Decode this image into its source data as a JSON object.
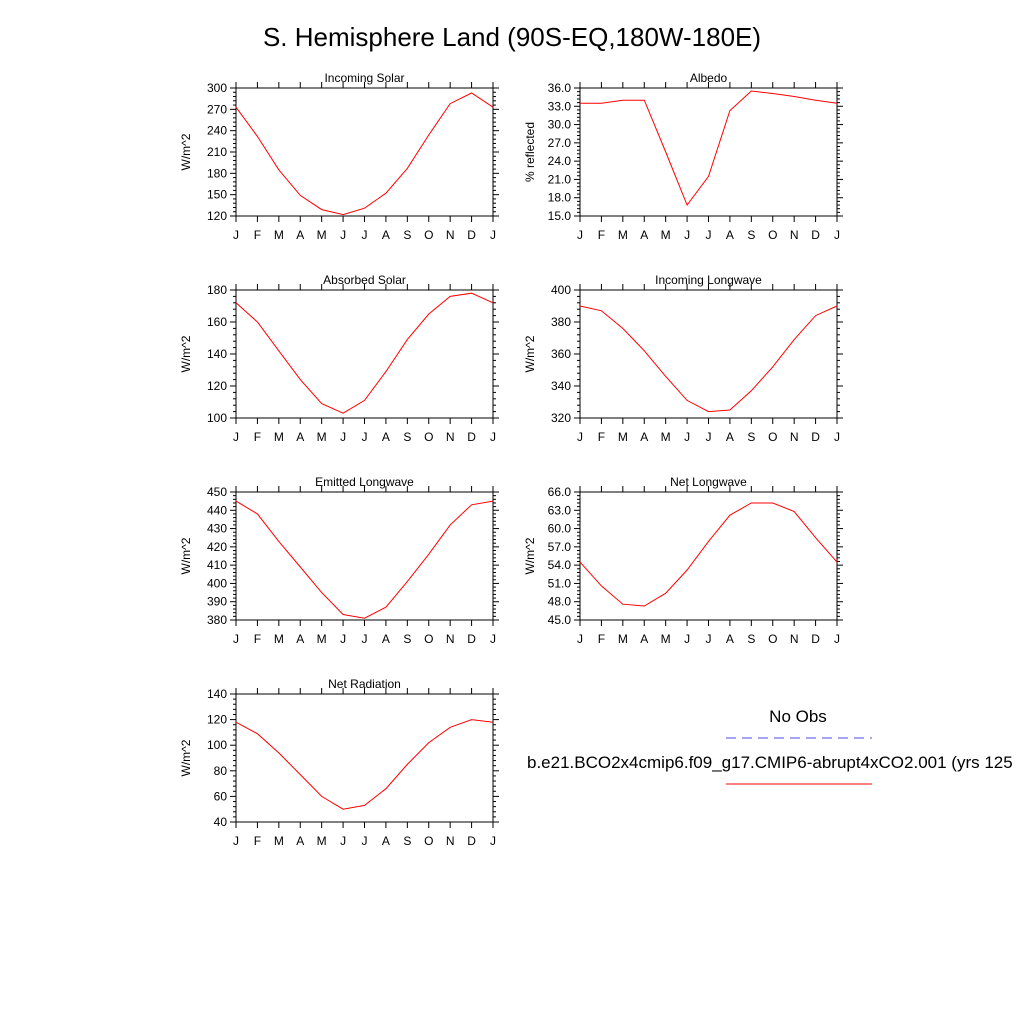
{
  "title": "S. Hemisphere Land (90S-EQ,180W-180E)",
  "months": [
    "J",
    "F",
    "M",
    "A",
    "M",
    "J",
    "J",
    "A",
    "S",
    "O",
    "N",
    "D",
    "J"
  ],
  "legend": {
    "obs_label": "No Obs",
    "obs_color": "#4a4ae6",
    "model_label": "b.e21.BCO2x4cmip6.f09_g17.CMIP6-abrupt4xCO2.001 (yrs 125",
    "model_color": "#ff0000"
  },
  "chart_data": [
    {
      "type": "line",
      "title": "Incoming Solar",
      "ylabel": "W/m^2",
      "ylim": [
        120,
        300
      ],
      "yticks": [
        "120",
        "150",
        "180",
        "210",
        "240",
        "270",
        "300"
      ],
      "x": [
        "J",
        "F",
        "M",
        "A",
        "M",
        "J",
        "J",
        "A",
        "S",
        "O",
        "N",
        "D",
        "J"
      ],
      "values": [
        273,
        232,
        185,
        149,
        129,
        122,
        131,
        152,
        187,
        234,
        278,
        293,
        273
      ]
    },
    {
      "type": "line",
      "title": "Albedo",
      "ylabel": "% reflected",
      "ylim": [
        15,
        36
      ],
      "yticks": [
        "15.0",
        "18.0",
        "21.0",
        "24.0",
        "27.0",
        "30.0",
        "33.0",
        "36.0"
      ],
      "x": [
        "J",
        "F",
        "M",
        "A",
        "M",
        "J",
        "J",
        "A",
        "S",
        "O",
        "N",
        "D",
        "J"
      ],
      "values": [
        33.5,
        33.5,
        34.0,
        34.0,
        25.5,
        16.8,
        21.5,
        32.3,
        35.5,
        35.1,
        34.6,
        34.0,
        33.5
      ]
    },
    {
      "type": "line",
      "title": "Absorbed Solar",
      "ylabel": "W/m^2",
      "ylim": [
        100,
        180
      ],
      "yticks": [
        "100",
        "120",
        "140",
        "160",
        "180"
      ],
      "x": [
        "J",
        "F",
        "M",
        "A",
        "M",
        "J",
        "J",
        "A",
        "S",
        "O",
        "N",
        "D",
        "J"
      ],
      "values": [
        172,
        160,
        142,
        124,
        109,
        103,
        111,
        129,
        149,
        165,
        176,
        178,
        172
      ]
    },
    {
      "type": "line",
      "title": "Incoming Longwave",
      "ylabel": "W/m^2",
      "ylim": [
        320,
        400
      ],
      "yticks": [
        "320",
        "340",
        "360",
        "380",
        "400"
      ],
      "x": [
        "J",
        "F",
        "M",
        "A",
        "M",
        "J",
        "J",
        "A",
        "S",
        "O",
        "N",
        "D",
        "J"
      ],
      "values": [
        390,
        387,
        376,
        362,
        346,
        331,
        324,
        325,
        337,
        352,
        369,
        384,
        390
      ]
    },
    {
      "type": "line",
      "title": "Emitted Longwave",
      "ylabel": "W/m^2",
      "ylim": [
        380,
        450
      ],
      "yticks": [
        "380",
        "390",
        "400",
        "410",
        "420",
        "430",
        "440",
        "450"
      ],
      "x": [
        "J",
        "F",
        "M",
        "A",
        "M",
        "J",
        "J",
        "A",
        "S",
        "O",
        "N",
        "D",
        "J"
      ],
      "values": [
        445,
        438,
        423,
        409,
        395,
        383,
        381,
        387,
        401,
        416,
        432,
        443,
        445
      ]
    },
    {
      "type": "line",
      "title": "Net Longwave",
      "ylabel": "W/m^2",
      "ylim": [
        45,
        66
      ],
      "yticks": [
        "45.0",
        "48.0",
        "51.0",
        "54.0",
        "57.0",
        "60.0",
        "63.0",
        "66.0"
      ],
      "x": [
        "J",
        "F",
        "M",
        "A",
        "M",
        "J",
        "J",
        "A",
        "S",
        "O",
        "N",
        "D",
        "J"
      ],
      "values": [
        54.5,
        50.6,
        47.6,
        47.3,
        49.4,
        53.2,
        57.9,
        62.2,
        64.2,
        64.2,
        62.8,
        58.5,
        54.5
      ]
    },
    {
      "type": "line",
      "title": "Net Radiation",
      "ylabel": "W/m^2",
      "ylim": [
        40,
        140
      ],
      "yticks": [
        "40",
        "60",
        "80",
        "100",
        "120",
        "140"
      ],
      "x": [
        "J",
        "F",
        "M",
        "A",
        "M",
        "J",
        "J",
        "A",
        "S",
        "O",
        "N",
        "D",
        "J"
      ],
      "values": [
        118,
        109,
        94,
        77,
        60,
        50,
        53,
        66,
        85,
        102,
        114,
        120,
        118
      ]
    }
  ]
}
